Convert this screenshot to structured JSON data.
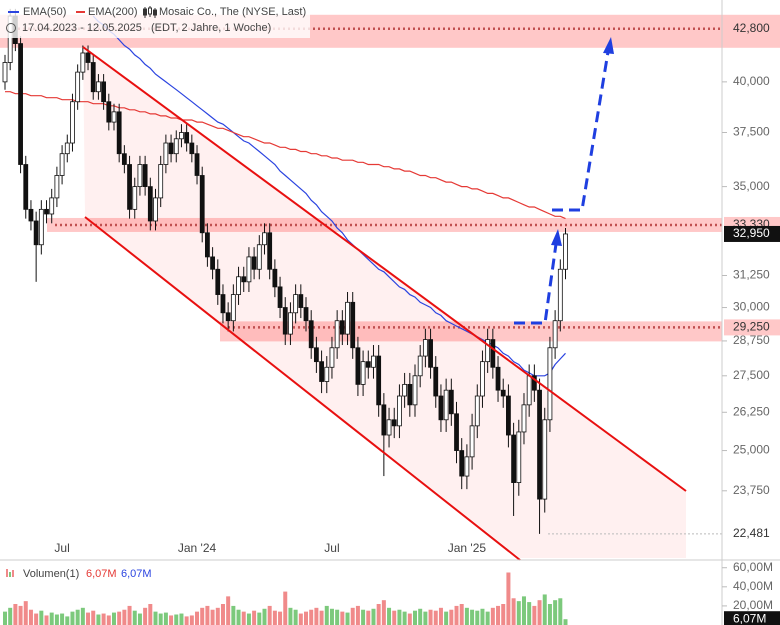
{
  "chart_data": {
    "type": "candlestick",
    "title": "Mosaic Co., The (NYSE, Last)",
    "subtitle": "17.04.2023 - 12.05.2025",
    "subtitle_note": "(EDT, 2 Jahre, 1 Woche)",
    "log_scale": true,
    "up_color": "#ffffff",
    "down_color": "#111111",
    "categories": [
      null,
      null,
      null,
      null,
      null,
      null,
      null,
      null,
      null,
      null,
      null,
      "Jul",
      null,
      null,
      null,
      null,
      null,
      null,
      null,
      null,
      null,
      null,
      null,
      null,
      null,
      null,
      null,
      null,
      null,
      null,
      null,
      null,
      null,
      null,
      null,
      null,
      null,
      "Jan '24",
      null,
      null,
      null,
      null,
      null,
      null,
      null,
      null,
      null,
      null,
      null,
      null,
      null,
      null,
      null,
      null,
      null,
      null,
      null,
      null,
      null,
      null,
      null,
      null,
      null,
      "Jul",
      null,
      null,
      null,
      null,
      null,
      null,
      null,
      null,
      null,
      null,
      null,
      null,
      null,
      null,
      null,
      null,
      null,
      null,
      null,
      null,
      null,
      null,
      null,
      null,
      null,
      "Jan '25",
      null,
      null,
      null,
      null,
      null,
      null,
      null,
      null,
      null,
      null,
      null,
      null,
      null,
      null,
      null,
      null,
      null,
      null,
      null
    ],
    "open": [
      40000,
      41000,
      43500,
      42000,
      36000,
      34000,
      33500,
      32500,
      34000,
      33800,
      34500,
      35500,
      36500,
      37000,
      39000,
      40500,
      41500,
      41000,
      39500,
      40000,
      39000,
      38000,
      38500,
      36500,
      36000,
      34000,
      35000,
      36000,
      35000,
      33500,
      34500,
      36000,
      37000,
      36500,
      37200,
      37500,
      37000,
      36500,
      35500,
      33000,
      32000,
      31500,
      30500,
      29800,
      29500,
      30500,
      31200,
      31000,
      32000,
      31500,
      32500,
      33000,
      31500,
      30800,
      30000,
      29000,
      29800,
      30500,
      30000,
      29500,
      28500,
      28000,
      27300,
      27800,
      28500,
      29500,
      29000,
      30200,
      28500,
      27200,
      28000,
      27800,
      28200,
      26500,
      25500,
      26000,
      25800,
      26800,
      27200,
      26500,
      27500,
      28200,
      28800,
      27800,
      26800,
      26000,
      27000,
      26200,
      25000,
      24200,
      24800,
      25800,
      26800,
      28000,
      28800,
      27800,
      27000,
      26800,
      25500,
      24000,
      25600,
      26500,
      27500,
      27000,
      23500,
      26000,
      28500,
      29500,
      31500
    ],
    "high": [
      41400,
      43900,
      43900,
      42400,
      36400,
      34400,
      33900,
      34400,
      34400,
      34900,
      35900,
      36900,
      37400,
      39400,
      40900,
      41900,
      41900,
      41400,
      40400,
      40400,
      39400,
      38900,
      38900,
      36900,
      36400,
      35400,
      36400,
      36400,
      35400,
      34900,
      36400,
      37400,
      37400,
      37600,
      37900,
      37900,
      37400,
      36900,
      35900,
      33400,
      32400,
      31900,
      30900,
      30200,
      30900,
      31600,
      31600,
      32400,
      32400,
      32900,
      33400,
      33400,
      31900,
      31200,
      30400,
      30200,
      30900,
      30900,
      30400,
      29900,
      28900,
      28400,
      28200,
      28900,
      29900,
      29900,
      30600,
      30600,
      28900,
      28400,
      28400,
      28600,
      28600,
      26900,
      26400,
      26400,
      27200,
      27600,
      27600,
      27900,
      28600,
      29200,
      29200,
      28200,
      27200,
      27400,
      27400,
      26600,
      25400,
      25200,
      26200,
      27200,
      28400,
      29200,
      29200,
      28200,
      27400,
      27200,
      25900,
      26000,
      26900,
      27900,
      27900,
      27400,
      26400,
      28900,
      29900,
      31900,
      33200
    ],
    "low": [
      39600,
      40600,
      41600,
      35600,
      33600,
      33100,
      31000,
      32100,
      33400,
      33400,
      34100,
      35100,
      36100,
      36600,
      38600,
      40100,
      40600,
      39100,
      39100,
      38600,
      37600,
      37600,
      36100,
      35600,
      33600,
      33600,
      34600,
      34600,
      33100,
      33100,
      34100,
      35600,
      36100,
      36100,
      36800,
      36600,
      36100,
      35100,
      32600,
      31600,
      31100,
      30100,
      29400,
      29100,
      29100,
      30100,
      30600,
      30600,
      31100,
      31100,
      32100,
      31100,
      30400,
      29600,
      28600,
      28600,
      29400,
      29600,
      29100,
      28100,
      27600,
      26900,
      26900,
      27400,
      28100,
      28600,
      28600,
      28100,
      26800,
      26800,
      27400,
      27400,
      26100,
      24200,
      25100,
      25400,
      25400,
      26400,
      26100,
      26100,
      27100,
      27800,
      27400,
      26400,
      25600,
      25600,
      25800,
      24600,
      23800,
      23800,
      24400,
      25400,
      26400,
      27600,
      27400,
      26600,
      26400,
      25100,
      23000,
      23600,
      25200,
      26100,
      26600,
      22481,
      23100,
      25600,
      28100,
      29100,
      31100
    ],
    "close": [
      41000,
      43500,
      42000,
      36000,
      34000,
      33500,
      32500,
      34000,
      33800,
      34500,
      35500,
      36500,
      37000,
      39000,
      40500,
      41500,
      41000,
      39500,
      40000,
      39000,
      38000,
      38500,
      36500,
      36000,
      34000,
      35000,
      36000,
      35000,
      33500,
      34500,
      36000,
      37000,
      36500,
      37200,
      37500,
      37000,
      36500,
      35500,
      33000,
      32000,
      31500,
      30500,
      29800,
      29500,
      30500,
      31200,
      31000,
      32000,
      31500,
      32500,
      33000,
      31500,
      30800,
      30000,
      29000,
      29800,
      30500,
      30000,
      29500,
      28500,
      28000,
      27300,
      27800,
      28500,
      29500,
      29000,
      30200,
      28500,
      27200,
      28000,
      27800,
      28200,
      26500,
      25500,
      26000,
      25800,
      26800,
      27200,
      26500,
      27500,
      28200,
      28800,
      27800,
      26800,
      26000,
      27000,
      26200,
      25000,
      24200,
      24800,
      25800,
      26800,
      28000,
      28800,
      27800,
      27000,
      26800,
      25500,
      24000,
      25600,
      26500,
      27500,
      27000,
      23500,
      26000,
      28500,
      29500,
      31500,
      32950
    ],
    "last_label": "32,950",
    "series": [
      {
        "name": "EMA(50)",
        "color": "#2b44e0",
        "values": [
          null,
          null,
          null,
          null,
          null,
          null,
          null,
          null,
          null,
          null,
          null,
          null,
          null,
          null,
          null,
          null,
          null,
          43500,
          43200,
          43000,
          42700,
          42500,
          42200,
          41900,
          41700,
          41400,
          41200,
          40900,
          40700,
          40400,
          40200,
          40000,
          39800,
          39600,
          39400,
          39200,
          39000,
          38800,
          38600,
          38400,
          38200,
          38000,
          37900,
          37700,
          37500,
          37300,
          37100,
          37000,
          36800,
          36600,
          36400,
          36200,
          36000,
          35700,
          35500,
          35300,
          35100,
          34900,
          34700,
          34400,
          34200,
          33900,
          33700,
          33500,
          33200,
          33000,
          32700,
          32500,
          32300,
          32100,
          31900,
          31700,
          31500,
          31400,
          31200,
          31000,
          30800,
          30700,
          30500,
          30400,
          30200,
          30100,
          30000,
          29800,
          29700,
          29500,
          29400,
          29300,
          29200,
          29100,
          29000,
          28900,
          28800,
          28700,
          28600,
          28500,
          28300,
          28200,
          28000,
          27900,
          27700,
          27600,
          27500,
          27500,
          27500,
          27600,
          27900,
          28100,
          28300
        ]
      },
      {
        "name": "EMA(200)",
        "color": "#e53935",
        "values": [
          39500,
          39500,
          39400,
          39400,
          39400,
          39300,
          39300,
          39300,
          39200,
          39200,
          39200,
          39100,
          39100,
          39100,
          39000,
          39000,
          39000,
          38900,
          38900,
          38900,
          38800,
          38800,
          38700,
          38700,
          38600,
          38600,
          38500,
          38500,
          38400,
          38400,
          38300,
          38300,
          38200,
          38200,
          38100,
          38100,
          38100,
          38000,
          38000,
          37900,
          37800,
          37700,
          37700,
          37600,
          37500,
          37400,
          37300,
          37300,
          37200,
          37100,
          37000,
          37000,
          36900,
          36800,
          36800,
          36700,
          36700,
          36600,
          36600,
          36500,
          36500,
          36400,
          36400,
          36300,
          36300,
          36200,
          36200,
          36200,
          36100,
          36100,
          36000,
          36000,
          36000,
          35900,
          35900,
          35800,
          35800,
          35700,
          35700,
          35600,
          35500,
          35500,
          35400,
          35400,
          35300,
          35200,
          35200,
          35100,
          35000,
          35000,
          34900,
          34900,
          34800,
          34700,
          34700,
          34600,
          34500,
          34500,
          34400,
          34300,
          34200,
          34100,
          34100,
          34000,
          33900,
          33800,
          33700,
          33700,
          33600
        ]
      }
    ],
    "ylim": [
      21800,
      44400
    ],
    "yticks": [
      {
        "value": 40000,
        "label": "40,000"
      },
      {
        "value": 37500,
        "label": "37,500"
      },
      {
        "value": 35000,
        "label": "35,000"
      },
      {
        "value": 31250,
        "label": "31,250"
      },
      {
        "value": 30000,
        "label": "30,000"
      },
      {
        "value": 28750,
        "label": "28,750"
      },
      {
        "value": 27500,
        "label": "27,500"
      },
      {
        "value": 26250,
        "label": "26,250"
      },
      {
        "value": 25000,
        "label": "25,000"
      },
      {
        "value": 23750,
        "label": "23,750"
      }
    ],
    "levels": [
      {
        "value": 42800,
        "label": "42,800"
      },
      {
        "value": 33330,
        "label": "33,330"
      },
      {
        "value": 29250,
        "label": "29,250"
      },
      {
        "value": 22481,
        "label": "22,481"
      }
    ],
    "volume": {
      "name": "Volumen(1)",
      "up_color": "#7cc97c",
      "down_color": "#f08a8a",
      "legend_values": [
        "6,07M",
        "6,07M"
      ],
      "last_label": "6,07M",
      "ylim": [
        0,
        66000000
      ],
      "yticks": [
        {
          "value": 60000000,
          "label": "60,00M"
        },
        {
          "value": 40000000,
          "label": "40,00M"
        },
        {
          "value": 20000000,
          "label": "20,00M"
        }
      ],
      "values": [
        14000000,
        18000000,
        22000000,
        20000000,
        25000000,
        16000000,
        12000000,
        15000000,
        10000000,
        13000000,
        11000000,
        12000000,
        9000000,
        14000000,
        16000000,
        18000000,
        13000000,
        15000000,
        11000000,
        12000000,
        10000000,
        13000000,
        14000000,
        16000000,
        20000000,
        15000000,
        12000000,
        18000000,
        22000000,
        14000000,
        12000000,
        13000000,
        10000000,
        11000000,
        12000000,
        9000000,
        10000000,
        14000000,
        18000000,
        20000000,
        16000000,
        18000000,
        22000000,
        30000000,
        20000000,
        16000000,
        14000000,
        12000000,
        15000000,
        13000000,
        17000000,
        20000000,
        15000000,
        14000000,
        35000000,
        18000000,
        16000000,
        12000000,
        14000000,
        16000000,
        18000000,
        15000000,
        20000000,
        17000000,
        16000000,
        14000000,
        13000000,
        18000000,
        20000000,
        16000000,
        15000000,
        17000000,
        22000000,
        26000000,
        18000000,
        15000000,
        16000000,
        14000000,
        12000000,
        15000000,
        17000000,
        14000000,
        16000000,
        15000000,
        18000000,
        14000000,
        16000000,
        20000000,
        22000000,
        18000000,
        16000000,
        15000000,
        17000000,
        14000000,
        18000000,
        20000000,
        22000000,
        55000000,
        28000000,
        25000000,
        30000000,
        24000000,
        20000000,
        26000000,
        32000000,
        22000000,
        26000000,
        28000000,
        6070000
      ]
    }
  }
}
